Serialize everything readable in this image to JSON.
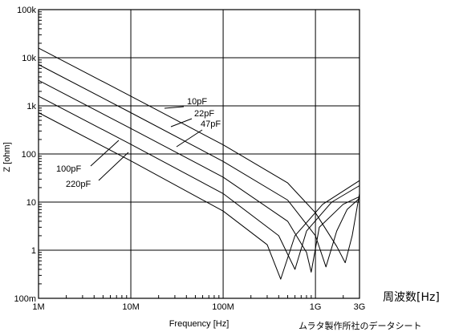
{
  "chart_data": {
    "type": "line",
    "xlabel": "Frequency [Hz]",
    "ylabel": "Z [ohm]",
    "xscale": "log",
    "yscale": "log",
    "xlim": [
      1000000,
      3000000000
    ],
    "ylim": [
      0.1,
      100000
    ],
    "grid": true,
    "x_ticks": [
      {
        "value": 1000000,
        "label": "1M"
      },
      {
        "value": 10000000,
        "label": "10M"
      },
      {
        "value": 100000000,
        "label": "100M"
      },
      {
        "value": 1000000000,
        "label": "1G"
      },
      {
        "value": 3000000000,
        "label": "3G"
      }
    ],
    "y_ticks": [
      {
        "value": 0.1,
        "label": "100m"
      },
      {
        "value": 1,
        "label": "1"
      },
      {
        "value": 10,
        "label": "10"
      },
      {
        "value": 100,
        "label": "100"
      },
      {
        "value": 1000,
        "label": "1k"
      },
      {
        "value": 10000,
        "label": "10k"
      },
      {
        "value": 100000,
        "label": "100k"
      }
    ],
    "series": [
      {
        "name": "10pF",
        "capacitance_pF": 10,
        "points": [
          [
            1000000,
            15900
          ],
          [
            10000000,
            1590
          ],
          [
            100000000,
            155
          ],
          [
            500000000,
            25
          ],
          [
            1000000000,
            6
          ],
          [
            1700000000,
            1.2
          ],
          [
            2100000000,
            0.55
          ],
          [
            2500000000,
            2
          ],
          [
            3000000000,
            15
          ]
        ]
      },
      {
        "name": "22pF",
        "capacitance_pF": 22,
        "points": [
          [
            1000000,
            7230
          ],
          [
            10000000,
            723
          ],
          [
            100000000,
            70
          ],
          [
            500000000,
            11
          ],
          [
            1000000000,
            2
          ],
          [
            1300000000,
            0.45
          ],
          [
            1700000000,
            2.5
          ],
          [
            2200000000,
            7
          ],
          [
            3000000000,
            12
          ]
        ]
      },
      {
        "name": "47pF",
        "capacitance_pF": 47,
        "points": [
          [
            1000000,
            3390
          ],
          [
            10000000,
            339
          ],
          [
            100000000,
            33
          ],
          [
            500000000,
            4
          ],
          [
            800000000,
            0.9
          ],
          [
            900000000,
            0.35
          ],
          [
            1100000000,
            3
          ],
          [
            2000000000,
            9
          ],
          [
            3000000000,
            13
          ]
        ]
      },
      {
        "name": "100pF",
        "capacitance_pF": 100,
        "points": [
          [
            1000000,
            1590
          ],
          [
            10000000,
            159
          ],
          [
            100000000,
            15
          ],
          [
            400000000,
            2
          ],
          [
            600000000,
            0.4
          ],
          [
            800000000,
            2.5
          ],
          [
            1500000000,
            10
          ],
          [
            3000000000,
            22
          ]
        ]
      },
      {
        "name": "220pF",
        "capacitance_pF": 220,
        "points": [
          [
            1000000,
            723
          ],
          [
            10000000,
            72
          ],
          [
            100000000,
            6.5
          ],
          [
            300000000,
            1.3
          ],
          [
            420000000,
            0.25
          ],
          [
            600000000,
            2
          ],
          [
            1200000000,
            9
          ],
          [
            3000000000,
            28
          ]
        ]
      }
    ]
  },
  "notes": {
    "unit_label": "周波数[Hz]",
    "source": "ムラタ製作所社のデータシート"
  }
}
